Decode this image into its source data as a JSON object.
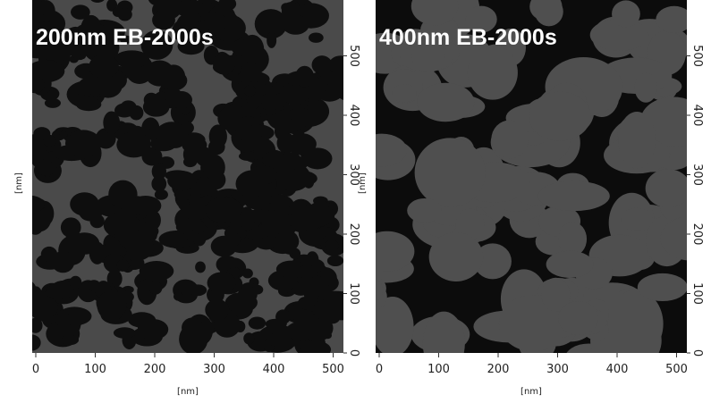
{
  "panels": [
    {
      "title": "200nm EB-2000s",
      "xticks": [
        0,
        100,
        200,
        300,
        400,
        500
      ],
      "yticks": [
        0,
        100,
        200,
        300,
        400,
        500
      ],
      "xlabel": "[nm]",
      "ylabel": "[nm]"
    },
    {
      "title": "400nm EB-2000s",
      "xticks": [
        0,
        100,
        200,
        300,
        400,
        500
      ],
      "yticks": [
        0,
        100,
        200,
        300,
        400,
        500
      ],
      "xlabel": "[nm]",
      "ylabel": "[nm]"
    }
  ]
}
